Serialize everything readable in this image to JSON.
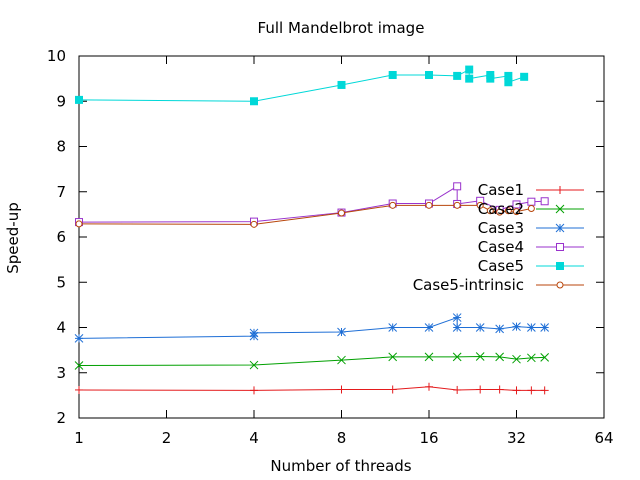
{
  "chart_data": {
    "type": "line",
    "title": "Full Mandelbrot image",
    "xlabel": "Number of threads",
    "ylabel": "Speed-up",
    "x_scale": "log2",
    "xlim": [
      1,
      64
    ],
    "ylim": [
      2,
      10
    ],
    "x_ticks": [
      1,
      2,
      4,
      8,
      16,
      32,
      64
    ],
    "y_ticks": [
      2,
      3,
      4,
      5,
      6,
      7,
      8,
      9,
      10
    ],
    "grid": false,
    "legend_position": "right",
    "series": [
      {
        "name": "Case1",
        "color": "#e41a1c",
        "marker": "plus",
        "points": [
          [
            1,
            2.62
          ],
          [
            4,
            2.61
          ],
          [
            8,
            2.63
          ],
          [
            12,
            2.63
          ],
          [
            16,
            2.69
          ],
          [
            20,
            2.62
          ],
          [
            24,
            2.63
          ],
          [
            28,
            2.63
          ],
          [
            32,
            2.61
          ],
          [
            36,
            2.61
          ],
          [
            40,
            2.61
          ]
        ]
      },
      {
        "name": "Case2",
        "color": "#00a000",
        "marker": "cross",
        "points": [
          [
            1,
            3.16
          ],
          [
            4,
            3.17
          ],
          [
            8,
            3.28
          ],
          [
            12,
            3.35
          ],
          [
            16,
            3.35
          ],
          [
            20,
            3.35
          ],
          [
            24,
            3.36
          ],
          [
            28,
            3.35
          ],
          [
            32,
            3.3
          ],
          [
            36,
            3.33
          ],
          [
            40,
            3.34
          ]
        ]
      },
      {
        "name": "Case3",
        "color": "#1f6fd6",
        "marker": "star",
        "points": [
          [
            1,
            3.76
          ],
          [
            4,
            3.81
          ],
          [
            4,
            3.88
          ],
          [
            8,
            3.9
          ],
          [
            12,
            4.0
          ],
          [
            16,
            4.0
          ],
          [
            20,
            4.22
          ],
          [
            20,
            4.0
          ],
          [
            24,
            4.0
          ],
          [
            28,
            3.97
          ],
          [
            32,
            4.02
          ],
          [
            36,
            4.0
          ],
          [
            40,
            4.0
          ]
        ]
      },
      {
        "name": "Case4",
        "color": "#9932cc",
        "marker": "open-square",
        "points": [
          [
            1,
            6.33
          ],
          [
            4,
            6.34
          ],
          [
            8,
            6.54
          ],
          [
            12,
            6.74
          ],
          [
            16,
            6.74
          ],
          [
            20,
            7.12
          ],
          [
            20,
            6.73
          ],
          [
            24,
            6.8
          ],
          [
            28,
            6.6
          ],
          [
            32,
            6.72
          ],
          [
            36,
            6.78
          ],
          [
            40,
            6.79
          ]
        ]
      },
      {
        "name": "Case5",
        "color": "#00d8d8",
        "marker": "filled-square",
        "points": [
          [
            1,
            9.03
          ],
          [
            4,
            9.0
          ],
          [
            8,
            9.36
          ],
          [
            12,
            9.58
          ],
          [
            16,
            9.58
          ],
          [
            20,
            9.56
          ],
          [
            22,
            9.7
          ],
          [
            22,
            9.5
          ],
          [
            26,
            9.58
          ],
          [
            26,
            9.5
          ],
          [
            30,
            9.56
          ],
          [
            30,
            9.42
          ],
          [
            34,
            9.54
          ]
        ]
      },
      {
        "name": "Case5-intrinsic",
        "color": "#b8460b",
        "marker": "open-circle",
        "points": [
          [
            1,
            6.29
          ],
          [
            4,
            6.28
          ],
          [
            8,
            6.53
          ],
          [
            12,
            6.7
          ],
          [
            16,
            6.7
          ],
          [
            20,
            6.7
          ],
          [
            24,
            6.7
          ],
          [
            26,
            6.58
          ],
          [
            28,
            6.55
          ],
          [
            30,
            6.58
          ],
          [
            32,
            6.56
          ],
          [
            36,
            6.63
          ]
        ]
      }
    ]
  }
}
